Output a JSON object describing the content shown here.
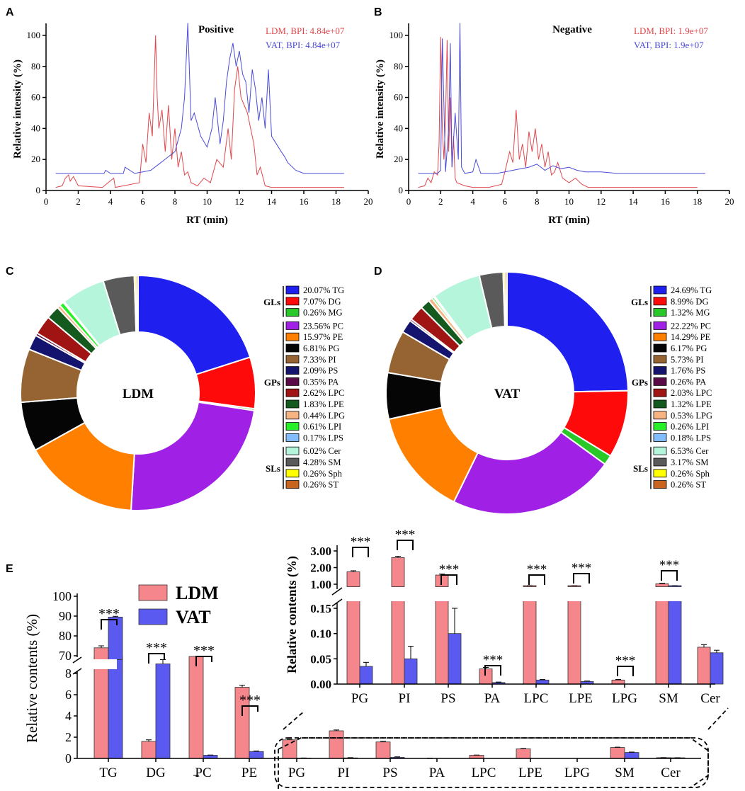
{
  "panel_labels": [
    "A",
    "B",
    "C",
    "D",
    "E"
  ],
  "chart_data": [
    {
      "type": "line",
      "panel": "A",
      "title": "Positive",
      "xlabel": "RT (min)",
      "ylabel": "Relative intensity (%)",
      "xlim": [
        0,
        20
      ],
      "ylim": [
        0,
        105
      ],
      "xticks": [
        "0",
        "2",
        "4",
        "6",
        "8",
        "10",
        "12",
        "14",
        "16",
        "18",
        "20"
      ],
      "yticks": [
        "0",
        "20",
        "40",
        "60",
        "80",
        "100"
      ],
      "series": [
        {
          "name": "LDM, BPI: 4.84e+07",
          "color": "#e0474c",
          "x": [
            0.6,
            1.0,
            1.2,
            1.4,
            1.5,
            1.7,
            2.0,
            3.5,
            4.2,
            4.3,
            5.8,
            6.0,
            6.2,
            6.4,
            6.6,
            6.8,
            6.9,
            7.0,
            7.2,
            7.4,
            7.6,
            7.8,
            8.0,
            8.2,
            8.4,
            8.6,
            8.8,
            9.0,
            9.4,
            9.8,
            10.2,
            10.6,
            11.0,
            11.3,
            11.5,
            11.7,
            11.9,
            12.1,
            12.3,
            12.5,
            12.7,
            12.9,
            13.1,
            13.3,
            13.6,
            14.0,
            15.0,
            16.0,
            17.0,
            18.5
          ],
          "y": [
            2,
            3,
            8,
            10,
            6,
            9,
            3,
            2,
            8,
            2,
            5,
            30,
            18,
            50,
            35,
            100,
            60,
            40,
            52,
            25,
            55,
            20,
            40,
            15,
            25,
            10,
            12,
            5,
            3,
            8,
            5,
            20,
            15,
            40,
            20,
            65,
            80,
            60,
            55,
            50,
            40,
            30,
            10,
            15,
            3,
            2,
            2,
            2,
            2,
            2
          ]
        },
        {
          "name": "VAT, BPI: 4.84e+07",
          "color": "#4b4bd8",
          "x": [
            0.6,
            2.0,
            3.6,
            3.7,
            4.0,
            4.8,
            4.9,
            5.5,
            6.0,
            6.5,
            7.0,
            7.5,
            8.0,
            8.4,
            8.6,
            8.8,
            9.0,
            9.2,
            9.6,
            10.0,
            10.3,
            10.5,
            10.8,
            11.0,
            11.2,
            11.4,
            11.6,
            11.8,
            12.0,
            12.2,
            12.4,
            12.6,
            12.8,
            13.0,
            13.2,
            13.4,
            13.6,
            13.8,
            14.0,
            14.3,
            14.6,
            14.8,
            15.0,
            15.5,
            16.0,
            17.0,
            18.5
          ],
          "y": [
            11,
            11,
            11,
            13,
            11,
            11,
            15,
            11,
            12,
            13,
            17,
            21,
            25,
            40,
            60,
            108,
            45,
            50,
            35,
            28,
            40,
            60,
            30,
            45,
            70,
            85,
            95,
            80,
            90,
            75,
            70,
            50,
            78,
            65,
            45,
            60,
            40,
            78,
            35,
            30,
            25,
            22,
            18,
            13,
            11,
            11,
            11
          ]
        }
      ]
    },
    {
      "type": "line",
      "panel": "B",
      "title": "Negative",
      "xlabel": "RT (min)",
      "ylabel": "Relative intensity (%)",
      "xlim": [
        0,
        20
      ],
      "ylim": [
        0,
        105
      ],
      "xticks": [
        "0",
        "2",
        "4",
        "6",
        "8",
        "10",
        "12",
        "14",
        "16",
        "18",
        "20"
      ],
      "yticks": [
        "0",
        "20",
        "40",
        "60",
        "80",
        "100"
      ],
      "series": [
        {
          "name": "LDM, BPI: 1.9e+07",
          "color": "#e0474c",
          "x": [
            0.6,
            1.0,
            1.2,
            1.4,
            1.6,
            1.8,
            1.9,
            2.0,
            2.1,
            2.2,
            2.3,
            2.4,
            2.5,
            2.6,
            2.7,
            2.8,
            2.9,
            3.0,
            3.5,
            4.0,
            5.0,
            5.8,
            6.0,
            6.3,
            6.5,
            6.7,
            6.9,
            7.1,
            7.3,
            7.5,
            7.7,
            7.9,
            8.1,
            8.3,
            8.5,
            8.7,
            8.9,
            9.1,
            9.3,
            9.6,
            10.0,
            10.4,
            10.8,
            11.2,
            12.0,
            14.0,
            16.0,
            18.0
          ],
          "y": [
            2,
            3,
            8,
            5,
            12,
            10,
            30,
            99,
            40,
            20,
            45,
            97,
            25,
            60,
            15,
            35,
            8,
            5,
            3,
            2,
            2,
            4,
            12,
            25,
            18,
            52,
            20,
            30,
            15,
            38,
            25,
            40,
            20,
            30,
            15,
            25,
            10,
            12,
            18,
            8,
            5,
            8,
            4,
            2,
            2,
            2,
            2,
            2
          ]
        },
        {
          "name": "VAT, BPI: 1.9e+07",
          "color": "#4b4bd8",
          "x": [
            0.6,
            1.8,
            2.0,
            2.1,
            2.3,
            2.5,
            2.6,
            2.7,
            2.9,
            3.1,
            3.2,
            3.3,
            3.5,
            4.0,
            4.2,
            4.5,
            5.0,
            5.5,
            6.0,
            6.5,
            7.0,
            7.5,
            8.0,
            8.5,
            9.0,
            9.5,
            10.0,
            10.5,
            11.0,
            12.0,
            13.0,
            14.0,
            16.0,
            18.5
          ],
          "y": [
            11,
            11,
            13,
            98,
            12,
            40,
            95,
            15,
            50,
            20,
            108,
            15,
            11,
            12,
            20,
            11,
            11,
            11,
            12,
            13,
            14,
            15,
            17,
            13,
            16,
            14,
            15,
            13,
            12,
            12,
            11,
            11,
            11,
            11
          ]
        }
      ]
    },
    {
      "type": "pie",
      "panel": "C",
      "center_label": "LDM",
      "groups": [
        {
          "name": "GLs",
          "items": [
            {
              "pct": "20.07%",
              "label": "TG",
              "value": 20.07,
              "color": "#1f1ff0"
            },
            {
              "pct": "7.07%",
              "label": "DG",
              "value": 7.07,
              "color": "#ff0a0a"
            },
            {
              "pct": "0.26%",
              "label": "MG",
              "value": 0.26,
              "color": "#28c828"
            }
          ]
        },
        {
          "name": "GPs",
          "items": [
            {
              "pct": "23.56%",
              "label": "PC",
              "value": 23.56,
              "color": "#a020e6"
            },
            {
              "pct": "15.97%",
              "label": "PE",
              "value": 15.97,
              "color": "#ff8000"
            },
            {
              "pct": "6.81%",
              "label": "PG",
              "value": 6.81,
              "color": "#050505"
            },
            {
              "pct": "7.33%",
              "label": "PI",
              "value": 7.33,
              "color": "#966432"
            },
            {
              "pct": "2.09%",
              "label": "PS",
              "value": 2.09,
              "color": "#14146e"
            },
            {
              "pct": "0.35%",
              "label": "PA",
              "value": 0.35,
              "color": "#5a0a46"
            },
            {
              "pct": "2.62%",
              "label": "LPC",
              "value": 2.62,
              "color": "#a01414"
            },
            {
              "pct": "1.83%",
              "label": "LPE",
              "value": 1.83,
              "color": "#145a1e"
            },
            {
              "pct": "0.44%",
              "label": "LPG",
              "value": 0.44,
              "color": "#f5b482"
            },
            {
              "pct": "0.61%",
              "label": "LPI",
              "value": 0.61,
              "color": "#28f028"
            },
            {
              "pct": "0.17%",
              "label": "LPS",
              "value": 0.17,
              "color": "#82beff"
            }
          ]
        },
        {
          "name": "SLs",
          "items": [
            {
              "pct": "6.02%",
              "label": "Cer",
              "value": 6.02,
              "color": "#b4f5dc"
            },
            {
              "pct": "4.28%",
              "label": "SM",
              "value": 4.28,
              "color": "#5a5a5a"
            },
            {
              "pct": "0.26%",
              "label": "Sph",
              "value": 0.26,
              "color": "#ffff00"
            },
            {
              "pct": "0.26%",
              "label": "ST",
              "value": 0.26,
              "color": "#c8641e"
            }
          ]
        }
      ]
    },
    {
      "type": "pie",
      "panel": "D",
      "center_label": "VAT",
      "groups": [
        {
          "name": "GLs",
          "items": [
            {
              "pct": "24.69%",
              "label": "TG",
              "value": 24.69,
              "color": "#1f1ff0"
            },
            {
              "pct": "8.99%",
              "label": "DG",
              "value": 8.99,
              "color": "#ff0a0a"
            },
            {
              "pct": "1.32%",
              "label": "MG",
              "value": 1.32,
              "color": "#28c828"
            }
          ]
        },
        {
          "name": "GPs",
          "items": [
            {
              "pct": "22.22%",
              "label": "PC",
              "value": 22.22,
              "color": "#a020e6"
            },
            {
              "pct": "14.29%",
              "label": "PE",
              "value": 14.29,
              "color": "#ff8000"
            },
            {
              "pct": "6.17%",
              "label": "PG",
              "value": 6.17,
              "color": "#050505"
            },
            {
              "pct": "5.73%",
              "label": "PI",
              "value": 5.73,
              "color": "#966432"
            },
            {
              "pct": "1.76%",
              "label": "PS",
              "value": 1.76,
              "color": "#14146e"
            },
            {
              "pct": "0.26%",
              "label": "PA",
              "value": 0.26,
              "color": "#5a0a46"
            },
            {
              "pct": "2.03%",
              "label": "LPC",
              "value": 2.03,
              "color": "#a01414"
            },
            {
              "pct": "1.32%",
              "label": "LPE",
              "value": 1.32,
              "color": "#145a1e"
            },
            {
              "pct": "0.53%",
              "label": "LPG",
              "value": 0.53,
              "color": "#f5b482"
            },
            {
              "pct": "0.26%",
              "label": "LPI",
              "value": 0.26,
              "color": "#28f028"
            },
            {
              "pct": "0.18%",
              "label": "LPS",
              "value": 0.18,
              "color": "#82beff"
            }
          ]
        },
        {
          "name": "SLs",
          "items": [
            {
              "pct": "6.53%",
              "label": "Cer",
              "value": 6.53,
              "color": "#b4f5dc"
            },
            {
              "pct": "3.17%",
              "label": "SM",
              "value": 3.17,
              "color": "#5a5a5a"
            },
            {
              "pct": "0.26%",
              "label": "Sph",
              "value": 0.26,
              "color": "#ffff00"
            },
            {
              "pct": "0.26%",
              "label": "ST",
              "value": 0.26,
              "color": "#c8641e"
            }
          ]
        }
      ]
    },
    {
      "type": "bar",
      "panel": "E",
      "ylabel": "Relative contents (%)",
      "legend": [
        {
          "name": "LDM",
          "color": "#f5878c"
        },
        {
          "name": "VAT",
          "color": "#5a5af0"
        }
      ],
      "significance": "***",
      "categories": [
        "TG",
        "DG",
        "PC",
        "PE",
        "PG",
        "PI",
        "PS",
        "PA",
        "LPC",
        "LPE",
        "LPG",
        "SM",
        "Cer"
      ],
      "series": [
        {
          "name": "LDM",
          "values": [
            74,
            1.6,
            9.3,
            6.7,
            1.75,
            2.6,
            1.55,
            0.03,
            0.3,
            0.9,
            0.008,
            1.03,
            0.073
          ]
        },
        {
          "name": "VAT",
          "values": [
            89.5,
            8.9,
            0.3,
            0.65,
            0.035,
            0.05,
            0.1,
            0.003,
            0.008,
            0.005,
            0.0,
            0.56,
            0.062
          ]
        }
      ],
      "errors": [
        {
          "name": "LDM",
          "values": [
            1.0,
            0.15,
            0.35,
            0.2,
            0.06,
            0.08,
            0.06,
            0.003,
            0.02,
            0.04,
            0.001,
            0.03,
            0.005
          ]
        },
        {
          "name": "VAT",
          "values": [
            0.4,
            0.4,
            0.02,
            0.05,
            0.008,
            0.025,
            0.05,
            0.001,
            0.001,
            0.001,
            0.0,
            0.04,
            0.005
          ]
        }
      ],
      "main_axis": {
        "yticks_lower": [
          "0",
          "2",
          "4",
          "6",
          "8"
        ],
        "yticks_upper": [
          "70",
          "80",
          "90",
          "100"
        ]
      },
      "inset": {
        "categories": [
          "PG",
          "PI",
          "PS",
          "PA",
          "LPC",
          "LPE",
          "LPG",
          "SM",
          "Cer"
        ],
        "yticks_lower": [
          "0.00",
          "0.05",
          "0.10",
          "0.15"
        ],
        "yticks_upper": [
          "1.00",
          "2.00",
          "3.00"
        ],
        "ylabel": "Relative contents (%)"
      }
    }
  ]
}
